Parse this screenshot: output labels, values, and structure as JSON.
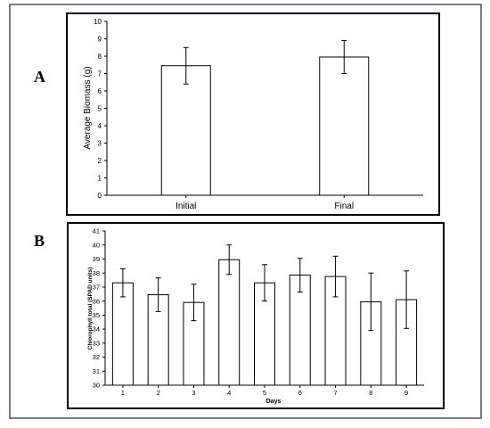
{
  "panels": [
    {
      "letter": "A",
      "chart_data": {
        "type": "bar",
        "categories": [
          "Initial",
          "Final"
        ],
        "values": [
          7.45,
          7.95
        ],
        "errors": [
          1.05,
          0.95
        ],
        "ylabel": "Average Biomass (g)",
        "xlabel": "",
        "ylim": [
          0,
          10
        ],
        "yticks": [
          0,
          1,
          2,
          3,
          4,
          5,
          6,
          7,
          8,
          9,
          10
        ]
      }
    },
    {
      "letter": "B",
      "chart_data": {
        "type": "bar",
        "categories": [
          "1",
          "2",
          "3",
          "4",
          "5",
          "6",
          "7",
          "8",
          "9"
        ],
        "values": [
          37.3,
          36.45,
          35.9,
          38.95,
          37.3,
          37.85,
          37.75,
          35.95,
          36.1
        ],
        "errors": [
          1.0,
          1.2,
          1.3,
          1.05,
          1.3,
          1.2,
          1.45,
          2.05,
          2.05
        ],
        "ylabel": "Chlorophyll total (SPAD units)",
        "xlabel": "Days",
        "ylim": [
          30,
          41
        ],
        "yticks": [
          30,
          31,
          32,
          33,
          34,
          35,
          36,
          37,
          38,
          39,
          40,
          41
        ]
      }
    }
  ],
  "colors": {
    "bar_fill": "#ffffff",
    "stroke": "#000000",
    "frame": "#41566a"
  }
}
